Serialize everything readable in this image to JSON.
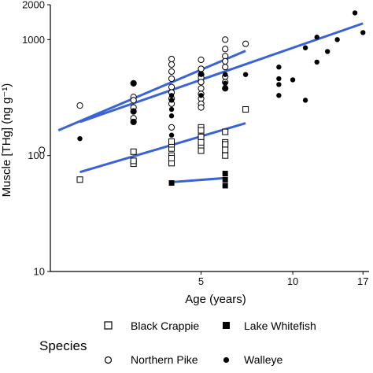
{
  "chart_data": {
    "type": "scatter",
    "title": "",
    "xlabel": "Age (years)",
    "ylabel": "Muscle [THg] (ng g⁻¹)",
    "x_scale": "log",
    "y_scale": "log",
    "xlim": [
      1.6,
      17.8
    ],
    "ylim": [
      10,
      2000
    ],
    "x_ticks": [
      5,
      10,
      17
    ],
    "y_ticks": [
      10,
      100,
      1000,
      2000
    ],
    "grid": false,
    "legend_title": "Species",
    "legend_position": "bottom",
    "line_color": "#3a63d6",
    "series": [
      {
        "name": "Black Crappie",
        "marker": "open-square",
        "points": [
          [
            2,
            62
          ],
          [
            3,
            85
          ],
          [
            3,
            108
          ],
          [
            3,
            90
          ],
          [
            4,
            115
          ],
          [
            4,
            125
          ],
          [
            4,
            100
          ],
          [
            4,
            86
          ],
          [
            4,
            132
          ],
          [
            4,
            95
          ],
          [
            5,
            120
          ],
          [
            5,
            175
          ],
          [
            5,
            165
          ],
          [
            5,
            145
          ],
          [
            5,
            130
          ],
          [
            5,
            110
          ],
          [
            6,
            160
          ],
          [
            6,
            130
          ],
          [
            6,
            125
          ],
          [
            6,
            112
          ],
          [
            6,
            100
          ],
          [
            7,
            250
          ]
        ],
        "fit": [
          [
            2,
            72
          ],
          [
            7,
            190
          ]
        ]
      },
      {
        "name": "Lake Whitefish",
        "marker": "filled-square",
        "points": [
          [
            4,
            58
          ],
          [
            6,
            70
          ],
          [
            6,
            62
          ],
          [
            6,
            55
          ]
        ],
        "fit": [
          [
            4,
            59
          ],
          [
            6,
            64
          ]
        ]
      },
      {
        "name": "Northern Pike",
        "marker": "open-circle",
        "points": [
          [
            1.5,
            112
          ],
          [
            2,
            270
          ],
          [
            3,
            420
          ],
          [
            3,
            320
          ],
          [
            3,
            300
          ],
          [
            3,
            260
          ],
          [
            3,
            240
          ],
          [
            3,
            210
          ],
          [
            3,
            195
          ],
          [
            4,
            680
          ],
          [
            4,
            610
          ],
          [
            4,
            530
          ],
          [
            4,
            460
          ],
          [
            4,
            390
          ],
          [
            4,
            350
          ],
          [
            4,
            310
          ],
          [
            4,
            280
          ],
          [
            4,
            175
          ],
          [
            5,
            670
          ],
          [
            5,
            560
          ],
          [
            5,
            500
          ],
          [
            5,
            470
          ],
          [
            5,
            430
          ],
          [
            5,
            380
          ],
          [
            5,
            340
          ],
          [
            5,
            310
          ],
          [
            5,
            280
          ],
          [
            5,
            260
          ],
          [
            6,
            1000
          ],
          [
            6,
            830
          ],
          [
            6,
            720
          ],
          [
            6,
            650
          ],
          [
            6,
            580
          ],
          [
            6,
            480
          ],
          [
            6,
            430
          ],
          [
            6,
            380
          ],
          [
            7,
            920
          ]
        ],
        "fit": [
          [
            1.7,
            165
          ],
          [
            7,
            800
          ]
        ]
      },
      {
        "name": "Walleye",
        "marker": "filled-circle",
        "points": [
          [
            2,
            140
          ],
          [
            3,
            240
          ],
          [
            3,
            195
          ],
          [
            3,
            420
          ],
          [
            4,
            330
          ],
          [
            4,
            300
          ],
          [
            4,
            250
          ],
          [
            4,
            220
          ],
          [
            4,
            150
          ],
          [
            5,
            500
          ],
          [
            5,
            330
          ],
          [
            6,
            500
          ],
          [
            6,
            420
          ],
          [
            6,
            380
          ],
          [
            7,
            500
          ],
          [
            9,
            580
          ],
          [
            9,
            460
          ],
          [
            9,
            410
          ],
          [
            9,
            330
          ],
          [
            10,
            450
          ],
          [
            11,
            850
          ],
          [
            11,
            300
          ],
          [
            12,
            1050
          ],
          [
            12,
            640
          ],
          [
            13,
            790
          ],
          [
            14,
            1000
          ],
          [
            16,
            1700
          ],
          [
            17,
            1150
          ]
        ],
        "fit": [
          [
            2,
            195
          ],
          [
            17,
            1380
          ]
        ]
      }
    ]
  }
}
